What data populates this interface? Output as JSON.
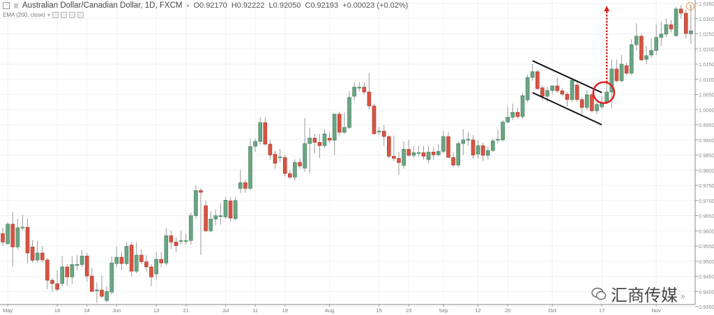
{
  "header": {
    "symbol": "Australian Dollar/Canadian Dollar, 1D, FXCM",
    "open": "O0.92170",
    "high": "H0.92222",
    "low": "L0.92050",
    "close": "C0.92193",
    "change": "+0.00023 (+0.02%)",
    "indicator": "EMA (200, close)"
  },
  "watermark": "汇商传媒",
  "scroll_icon": "»",
  "colors": {
    "up": "#6ba583",
    "down": "#d75442",
    "grid": "#eef0f3",
    "annotation_red": "#e02020",
    "channel": "#111111"
  },
  "chart_data": {
    "type": "candlestick",
    "ylim": [
      0.935,
      1.035
    ],
    "grid": true,
    "y_ticks": [
      1.035,
      1.03,
      1.025,
      1.02,
      1.015,
      1.01,
      1.005,
      1.0,
      0.995,
      0.99,
      0.985,
      0.98,
      0.975,
      0.97,
      0.965,
      0.96,
      0.955,
      0.95,
      0.945,
      0.94,
      0.935
    ],
    "x_ticks": [
      {
        "label": "May",
        "bar": 1
      },
      {
        "label": "16",
        "bar": 11
      },
      {
        "label": "24",
        "bar": 17
      },
      {
        "label": "Jun",
        "bar": 23
      },
      {
        "label": "13",
        "bar": 31
      },
      {
        "label": "21",
        "bar": 37
      },
      {
        "label": "Jul",
        "bar": 45
      },
      {
        "label": "11",
        "bar": 51
      },
      {
        "label": "19",
        "bar": 57
      },
      {
        "label": "Aug",
        "bar": 66
      },
      {
        "label": "15",
        "bar": 76
      },
      {
        "label": "23",
        "bar": 82
      },
      {
        "label": "Sep",
        "bar": 89
      },
      {
        "label": "12",
        "bar": 96
      },
      {
        "label": "20",
        "bar": 102
      },
      {
        "label": "Oct",
        "bar": 111
      },
      {
        "label": "17",
        "bar": 121
      },
      {
        "label": "Nov",
        "bar": 132
      }
    ],
    "ohlc": [
      [
        0.9591,
        0.961,
        0.955,
        0.9563
      ],
      [
        0.9558,
        0.9628,
        0.9553,
        0.9622
      ],
      [
        0.9622,
        0.9662,
        0.9482,
        0.9547
      ],
      [
        0.9547,
        0.964,
        0.9538,
        0.961
      ],
      [
        0.961,
        0.9653,
        0.96,
        0.9612
      ],
      [
        0.9612,
        0.9641,
        0.9493,
        0.9527
      ],
      [
        0.9547,
        0.957,
        0.9495,
        0.9503
      ],
      [
        0.9504,
        0.9567,
        0.9495,
        0.9527
      ],
      [
        0.9527,
        0.955,
        0.9495,
        0.9504
      ],
      [
        0.9504,
        0.951,
        0.9407,
        0.9437
      ],
      [
        0.9437,
        0.9445,
        0.9397,
        0.9426
      ],
      [
        0.9426,
        0.947,
        0.94,
        0.9407
      ],
      [
        0.9426,
        0.9516,
        0.9418,
        0.9481
      ],
      [
        0.9481,
        0.949,
        0.9418,
        0.9448
      ],
      [
        0.9448,
        0.9516,
        0.9425,
        0.9489
      ],
      [
        0.9486,
        0.952,
        0.947,
        0.9489
      ],
      [
        0.9489,
        0.9537,
        0.948,
        0.9517
      ],
      [
        0.9517,
        0.9528,
        0.9432,
        0.9451
      ],
      [
        0.9451,
        0.9478,
        0.94,
        0.94
      ],
      [
        0.9403,
        0.943,
        0.9362,
        0.9405
      ],
      [
        0.9405,
        0.9453,
        0.9378,
        0.9384
      ],
      [
        0.937,
        0.9418,
        0.9366,
        0.94
      ],
      [
        0.9398,
        0.9516,
        0.939,
        0.9494
      ],
      [
        0.9492,
        0.9548,
        0.948,
        0.9513
      ],
      [
        0.9513,
        0.953,
        0.947,
        0.9492
      ],
      [
        0.9492,
        0.9562,
        0.9485,
        0.9549
      ],
      [
        0.9553,
        0.9562,
        0.945,
        0.9467
      ],
      [
        0.9467,
        0.9562,
        0.946,
        0.952
      ],
      [
        0.952,
        0.954,
        0.949,
        0.9498
      ],
      [
        0.9498,
        0.952,
        0.9465,
        0.9481
      ],
      [
        0.9481,
        0.949,
        0.9418,
        0.9448
      ],
      [
        0.9458,
        0.953,
        0.944,
        0.9506
      ],
      [
        0.9506,
        0.953,
        0.948,
        0.9494
      ],
      [
        0.9494,
        0.9609,
        0.9485,
        0.9584
      ],
      [
        0.9584,
        0.96,
        0.954,
        0.9563
      ],
      [
        0.9563,
        0.958,
        0.953,
        0.9551
      ],
      [
        0.9566,
        0.96,
        0.9555,
        0.9568
      ],
      [
        0.9568,
        0.959,
        0.9555,
        0.9568
      ],
      [
        0.9568,
        0.966,
        0.9555,
        0.965
      ],
      [
        0.965,
        0.975,
        0.964,
        0.9733
      ],
      [
        0.9733,
        0.9742,
        0.952,
        0.9727
      ],
      [
        0.9683,
        0.97,
        0.9595,
        0.96
      ],
      [
        0.96,
        0.9665,
        0.9595,
        0.9639
      ],
      [
        0.9639,
        0.967,
        0.962,
        0.965
      ],
      [
        0.9648,
        0.969,
        0.962,
        0.965
      ],
      [
        0.9646,
        0.9712,
        0.964,
        0.9701
      ],
      [
        0.9699,
        0.9712,
        0.963,
        0.9642
      ],
      [
        0.964,
        0.9712,
        0.9635,
        0.97
      ],
      [
        0.974,
        0.98,
        0.9725,
        0.9759
      ],
      [
        0.9759,
        0.977,
        0.9725,
        0.974
      ],
      [
        0.974,
        0.9905,
        0.9735,
        0.9878
      ],
      [
        0.9879,
        0.9905,
        0.986,
        0.9895
      ],
      [
        0.9895,
        0.9975,
        0.9885,
        0.9957
      ],
      [
        0.9957,
        0.9975,
        0.988,
        0.9886
      ],
      [
        0.9886,
        0.99,
        0.9835,
        0.985
      ],
      [
        0.9853,
        0.9865,
        0.9805,
        0.9823
      ],
      [
        0.9844,
        0.987,
        0.9825,
        0.9844
      ],
      [
        0.9842,
        0.985,
        0.978,
        0.9789
      ],
      [
        0.9789,
        0.98,
        0.977,
        0.9777
      ],
      [
        0.9777,
        0.9836,
        0.9765,
        0.9826
      ],
      [
        0.9826,
        0.984,
        0.9805,
        0.9814
      ],
      [
        0.9807,
        0.9972,
        0.9795,
        0.9888
      ],
      [
        0.9888,
        0.994,
        0.979,
        0.9906
      ],
      [
        0.9906,
        0.992,
        0.9855,
        0.9892
      ],
      [
        0.9892,
        0.992,
        0.984,
        0.9881
      ],
      [
        0.9881,
        0.9935,
        0.9875,
        0.992
      ],
      [
        0.9906,
        0.9925,
        0.989,
        0.9899
      ],
      [
        0.9899,
        0.9985,
        0.985,
        0.9985
      ],
      [
        0.9985,
        0.9992,
        0.9915,
        0.9925
      ],
      [
        0.9925,
        0.999,
        0.992,
        0.9941
      ],
      [
        0.9941,
        1.006,
        0.9935,
        1.004
      ],
      [
        1.0044,
        1.009,
        1.003,
        1.0074
      ],
      [
        1.0074,
        1.009,
        1.006,
        1.0074
      ],
      [
        1.0074,
        1.009,
        1.005,
        1.0058
      ],
      [
        1.0058,
        1.012,
        1.0,
        1.0012
      ],
      [
        1.0012,
        1.002,
        0.992,
        0.992
      ],
      [
        0.9929,
        0.9942,
        0.9915,
        0.9929
      ],
      [
        0.9929,
        0.995,
        0.988,
        0.9911
      ],
      [
        0.9911,
        0.9915,
        0.9838,
        0.9846
      ],
      [
        0.9846,
        0.9915,
        0.983,
        0.9839
      ],
      [
        0.9839,
        0.986,
        0.9785,
        0.9825
      ],
      [
        0.9816,
        0.9895,
        0.9805,
        0.9869
      ],
      [
        0.9869,
        0.99,
        0.9845,
        0.9849
      ],
      [
        0.9849,
        0.988,
        0.984,
        0.9858
      ],
      [
        0.9858,
        0.988,
        0.9845,
        0.9858
      ],
      [
        0.9858,
        0.988,
        0.9835,
        0.9846
      ],
      [
        0.9835,
        0.988,
        0.9822,
        0.986
      ],
      [
        0.986,
        0.9875,
        0.9835,
        0.9851
      ],
      [
        0.9851,
        0.9885,
        0.9845,
        0.9862
      ],
      [
        0.9862,
        0.993,
        0.9855,
        0.9911
      ],
      [
        0.9911,
        0.9925,
        0.984,
        0.9842
      ],
      [
        0.9842,
        0.986,
        0.981,
        0.9817
      ],
      [
        0.9817,
        0.9895,
        0.981,
        0.9888
      ],
      [
        0.9888,
        0.9935,
        0.985,
        0.99
      ],
      [
        0.99,
        0.9925,
        0.988,
        0.9902
      ],
      [
        0.99,
        0.9915,
        0.9838,
        0.985
      ],
      [
        0.9853,
        0.99,
        0.9838,
        0.9881
      ],
      [
        0.9881,
        0.9892,
        0.983,
        0.9849
      ],
      [
        0.9849,
        0.9878,
        0.9835,
        0.9865
      ],
      [
        0.9865,
        0.9905,
        0.986,
        0.9897
      ],
      [
        0.9899,
        0.9935,
        0.989,
        0.9902
      ],
      [
        0.99,
        0.9965,
        0.9895,
        0.9959
      ],
      [
        0.9959,
        1.001,
        0.9955,
        0.9975
      ],
      [
        0.9975,
        1.002,
        0.9965,
        0.9991
      ],
      [
        0.9991,
        1.0005,
        0.997,
        0.9977
      ],
      [
        0.9977,
        1.0055,
        0.997,
        1.0046
      ],
      [
        1.0032,
        1.0116,
        1.0025,
        1.0106
      ],
      [
        1.0106,
        1.015,
        1.0095,
        1.0125
      ],
      [
        1.0125,
        1.0132,
        1.0065,
        1.0069
      ],
      [
        1.0072,
        1.008,
        1.003,
        1.0044
      ],
      [
        1.0044,
        1.0075,
        1.0025,
        1.0063
      ],
      [
        1.0063,
        1.008,
        1.005,
        1.0078
      ],
      [
        1.0078,
        1.0105,
        1.0055,
        1.0062
      ],
      [
        1.0062,
        1.007,
        1.0045,
        1.0051
      ],
      [
        1.0051,
        1.0058,
        1.001,
        1.0033
      ],
      [
        1.0033,
        1.0105,
        1.0025,
        1.0097
      ],
      [
        1.0081,
        1.009,
        1.0025,
        1.0033
      ],
      [
        1.0033,
        1.004,
        0.9985,
        1.0007
      ],
      [
        1.0007,
        1.0065,
        1.0,
        1.0049
      ],
      [
        1.0049,
        1.0055,
        0.999,
        0.9996
      ],
      [
        0.9996,
        1.003,
        0.9985,
        1.0017
      ],
      [
        1.0009,
        1.0045,
        1.0,
        1.0023
      ],
      [
        1.0023,
        1.0095,
        1.0018,
        1.0058
      ],
      [
        1.0058,
        1.0165,
        1.0005,
        1.0134
      ],
      [
        1.0134,
        1.0165,
        1.009,
        1.0095
      ],
      [
        1.0095,
        1.018,
        1.009,
        1.015
      ],
      [
        1.0145,
        1.0155,
        1.0115,
        1.012
      ],
      [
        1.012,
        1.0232,
        1.0115,
        1.0214
      ],
      [
        1.0214,
        1.0285,
        1.0195,
        1.0242
      ],
      [
        1.0242,
        1.025,
        1.016,
        1.0164
      ],
      [
        1.0166,
        1.021,
        1.015,
        1.0178
      ],
      [
        1.018,
        1.0235,
        1.017,
        1.0195
      ],
      [
        1.0195,
        1.028,
        1.018,
        1.0238
      ],
      [
        1.0238,
        1.029,
        1.021,
        1.0249
      ],
      [
        1.0249,
        1.03,
        1.024,
        1.028
      ],
      [
        1.028,
        1.0295,
        1.0255,
        1.0266
      ],
      [
        1.0244,
        1.034,
        1.024,
        1.0332
      ],
      [
        1.0332,
        1.0345,
        1.03,
        1.0318
      ],
      [
        1.0318,
        1.033,
        1.0235,
        1.0251
      ],
      [
        1.025,
        1.0345,
        1.0215,
        1.026
      ]
    ],
    "annotations": {
      "channel_upper": [
        [
          107,
          1.0161
        ],
        [
          121,
          1.0056
        ]
      ],
      "channel_lower": [
        [
          107,
          1.0056
        ],
        [
          121,
          0.995
        ]
      ],
      "breakout_circle": [
        121.4,
        1.0056
      ],
      "target_arrow": {
        "bar": 122,
        "from": 1.009,
        "to": 1.034
      }
    }
  }
}
